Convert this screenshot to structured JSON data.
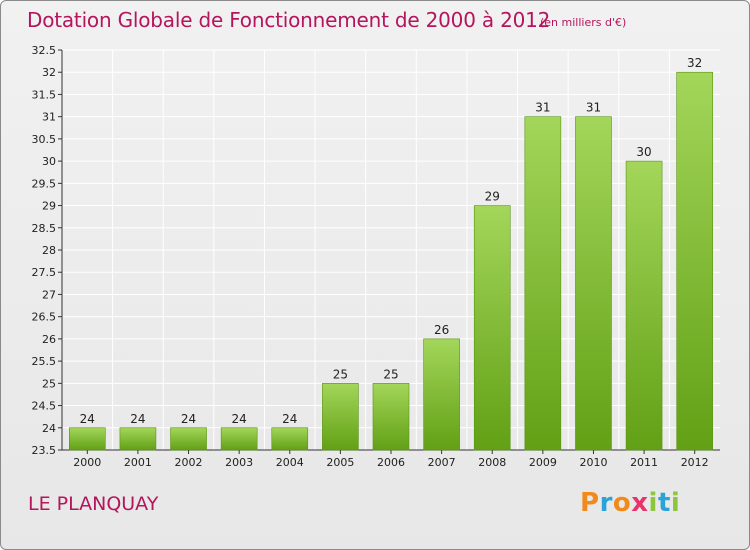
{
  "header": {
    "title": "Dotation Globale de Fonctionnement de 2000 à 2012",
    "unit": "(en milliers d'€)"
  },
  "footer": {
    "town": "LE PLANQUAY",
    "logo_letters": [
      {
        "char": "P",
        "color": "#f08a1c"
      },
      {
        "char": "r",
        "color": "#2aa3d9"
      },
      {
        "char": "o",
        "color": "#f08a1c"
      },
      {
        "char": "x",
        "color": "#e8336b"
      },
      {
        "char": "i",
        "color": "#8cc63f"
      },
      {
        "char": "t",
        "color": "#2aa3d9"
      },
      {
        "char": "i",
        "color": "#8cc63f"
      }
    ]
  },
  "colors": {
    "bar_light": "#a3d65a",
    "bar_dark": "#62a015",
    "grid": "#ffffff",
    "text_accent": "#b5155d"
  },
  "chart_data": {
    "type": "bar",
    "title": "Dotation Globale de Fonctionnement de 2000 à 2012",
    "subtitle": "(en milliers d'€)",
    "xlabel": "",
    "ylabel": "",
    "categories": [
      "2000",
      "2001",
      "2002",
      "2003",
      "2004",
      "2005",
      "2006",
      "2007",
      "2008",
      "2009",
      "2010",
      "2011",
      "2012"
    ],
    "values": [
      24,
      24,
      24,
      24,
      24,
      25,
      25,
      26,
      29,
      31,
      31,
      30,
      32
    ],
    "data_labels": [
      "24",
      "24",
      "24",
      "24",
      "24",
      "25",
      "25",
      "26",
      "29",
      "31",
      "31",
      "30",
      "32"
    ],
    "ylim": [
      23.5,
      32.5
    ],
    "yticks": [
      "23.5",
      "24",
      "24.5",
      "25",
      "25.5",
      "26",
      "26.5",
      "27",
      "27.5",
      "28",
      "28.5",
      "29",
      "29.5",
      "30",
      "30.5",
      "31",
      "31.5",
      "32",
      "32.5"
    ],
    "grid": true,
    "legend": "none"
  }
}
